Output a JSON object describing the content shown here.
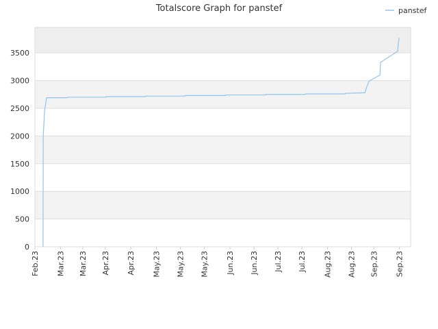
{
  "chart_data": {
    "type": "line",
    "title": "Totalscore Graph for panstef",
    "x": [
      5.1,
      5.2,
      5.6,
      6.0,
      7.3,
      20.1,
      20.2,
      44.4,
      44.5,
      69.2,
      69.3,
      94.0,
      94.1,
      119.2,
      119.3,
      144.4,
      144.5,
      169.2,
      169.3,
      194.0,
      194.1,
      206.4,
      207.7,
      209.0,
      215.8,
      216.2,
      226.9,
      227.4,
      227.8
    ],
    "series": [
      {
        "name": "panstef",
        "color": "#90c4f0",
        "values": [
          0,
          2000,
          2200,
          2450,
          2690,
          2690,
          2700,
          2700,
          2710,
          2710,
          2720,
          2720,
          2730,
          2730,
          2740,
          2740,
          2750,
          2750,
          2760,
          2760,
          2770,
          2780,
          2900,
          2990,
          3100,
          3330,
          3530,
          3700,
          3770
        ]
      }
    ],
    "xlim": [
      0,
      235
    ],
    "xticks": [
      {
        "value": 0,
        "label": "Feb.23"
      },
      {
        "value": 16,
        "label": "Mar.23"
      },
      {
        "value": 30,
        "label": "Mar.23"
      },
      {
        "value": 44,
        "label": "Apr.23"
      },
      {
        "value": 60,
        "label": "Apr.23"
      },
      {
        "value": 76,
        "label": "May.23"
      },
      {
        "value": 91,
        "label": "May.23"
      },
      {
        "value": 106,
        "label": "May.23"
      },
      {
        "value": 122,
        "label": "Jun.23"
      },
      {
        "value": 137,
        "label": "Jun.23"
      },
      {
        "value": 152,
        "label": "Jul.23"
      },
      {
        "value": 167,
        "label": "Jul.23"
      },
      {
        "value": 183,
        "label": "Aug.23"
      },
      {
        "value": 198,
        "label": "Aug.23"
      },
      {
        "value": 212,
        "label": "Sep.23"
      },
      {
        "value": 228,
        "label": "Sep.23"
      }
    ],
    "ylim": [
      0,
      3960
    ],
    "yticks": [
      0,
      500,
      1000,
      1500,
      2000,
      2500,
      3000,
      3500
    ],
    "grid": true,
    "legend": "top-right"
  }
}
